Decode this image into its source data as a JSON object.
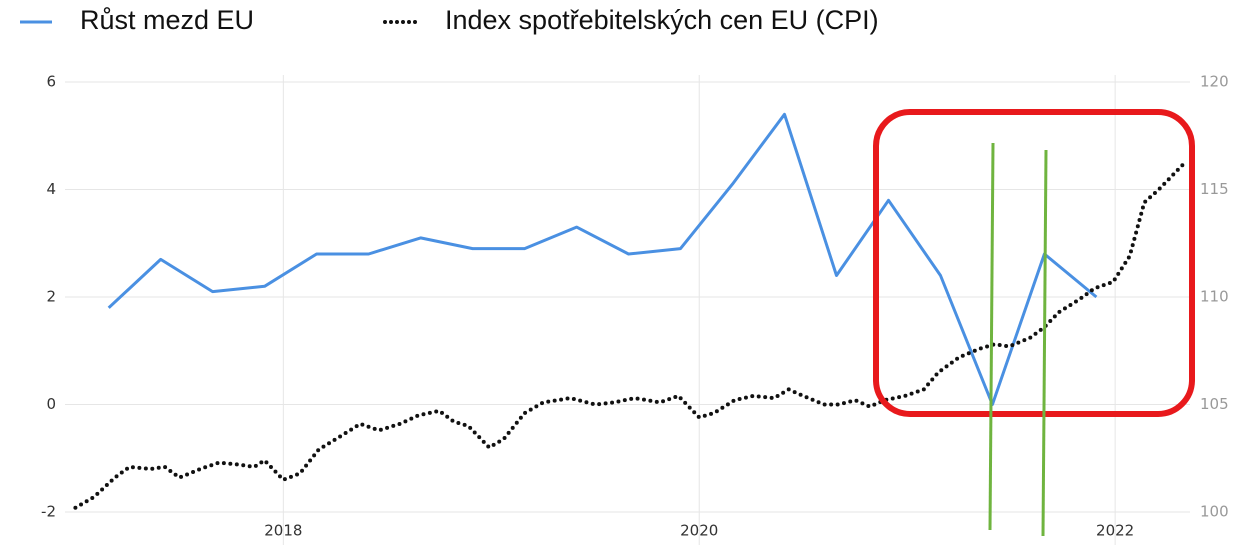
{
  "chart_data": {
    "type": "line",
    "xlim": [
      2016.95,
      2022.36
    ],
    "xticks": [
      2018,
      2020,
      2022
    ],
    "ylim": [
      -2,
      6
    ],
    "yticks": [
      -2,
      0,
      2,
      4,
      6
    ],
    "y2lim": [
      100,
      120
    ],
    "y2ticks": [
      100,
      105,
      110,
      115,
      120
    ],
    "grid": true,
    "legend": "top",
    "series": [
      {
        "name": "Růst mezd EU",
        "color": "#4a90e2",
        "style": "solid",
        "x": [
          2017.16,
          2017.41,
          2017.66,
          2017.91,
          2018.16,
          2018.41,
          2018.66,
          2018.91,
          2019.16,
          2019.41,
          2019.66,
          2019.91,
          2020.16,
          2020.41,
          2020.66,
          2020.91,
          2021.16,
          2021.41,
          2021.66,
          2021.91
        ],
        "values": [
          1.8,
          2.7,
          2.1,
          2.2,
          2.8,
          2.8,
          3.1,
          2.9,
          2.9,
          3.3,
          2.8,
          2.9,
          4.1,
          5.4,
          2.4,
          3.8,
          2.4,
          0.0,
          2.8,
          2.0
        ]
      },
      {
        "name": "Index spotřebitelských cen EU (CPI)",
        "color": "#111111",
        "style": "dotted",
        "axis": "y2",
        "x": [
          2017.0,
          2017.09,
          2017.19,
          2017.26,
          2017.36,
          2017.43,
          2017.5,
          2017.6,
          2017.69,
          2017.79,
          2017.86,
          2017.91,
          2018.0,
          2018.08,
          2018.17,
          2018.27,
          2018.37,
          2018.46,
          2018.56,
          2018.65,
          2018.75,
          2018.82,
          2018.89,
          2018.99,
          2019.06,
          2019.16,
          2019.25,
          2019.38,
          2019.5,
          2019.59,
          2019.69,
          2019.81,
          2019.9,
          2020.0,
          2020.07,
          2020.17,
          2020.26,
          2020.36,
          2020.43,
          2020.5,
          2020.6,
          2020.67,
          2020.75,
          2020.82,
          2020.89,
          2020.99,
          2021.08,
          2021.15,
          2021.25,
          2021.35,
          2021.42,
          2021.49,
          2021.59,
          2021.66,
          2021.73,
          2021.83,
          2021.9,
          2021.99,
          2022.07,
          2022.14,
          2022.21,
          2022.28,
          2022.33
        ],
        "values": [
          100.2,
          100.7,
          101.6,
          102.1,
          102.0,
          102.1,
          101.6,
          102.0,
          102.3,
          102.2,
          102.1,
          102.4,
          101.5,
          101.8,
          102.9,
          103.5,
          104.1,
          103.8,
          104.1,
          104.5,
          104.7,
          104.2,
          104.0,
          103.0,
          103.4,
          104.6,
          105.1,
          105.3,
          105.0,
          105.1,
          105.3,
          105.1,
          105.4,
          104.4,
          104.6,
          105.2,
          105.4,
          105.3,
          105.7,
          105.4,
          105.0,
          105.0,
          105.2,
          104.9,
          105.2,
          105.4,
          105.7,
          106.5,
          107.2,
          107.6,
          107.8,
          107.7,
          108.1,
          108.6,
          109.3,
          109.9,
          110.4,
          110.7,
          111.9,
          114.4,
          115.0,
          115.7,
          116.2
        ]
      }
    ]
  }
}
